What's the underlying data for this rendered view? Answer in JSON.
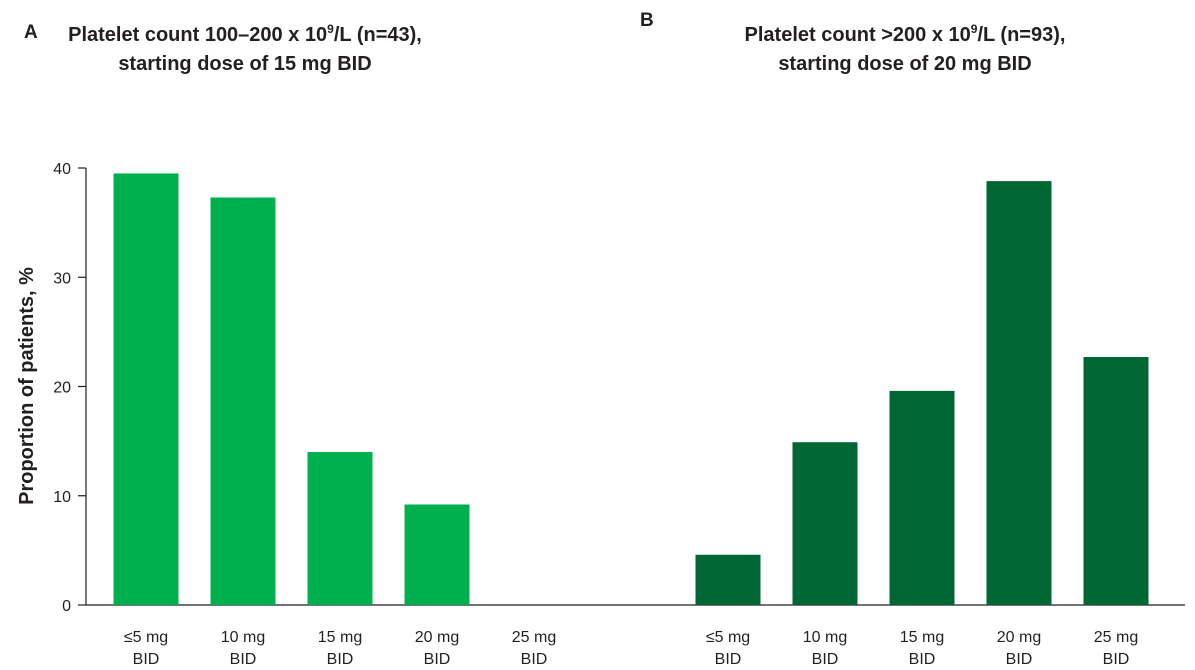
{
  "chart_data": {
    "type": "bar",
    "ylabel": "Proportion of patients, %",
    "ylim": [
      0,
      40
    ],
    "yticks": [
      "0",
      "10",
      "20",
      "30",
      "40"
    ],
    "grid": false,
    "panels": [
      {
        "letter": "A",
        "title_line1_pre": "Platelet count 100–200 x 10",
        "title_line1_sup": "9",
        "title_line1_post": "/L (n=43),",
        "title_line2": "starting dose of 15 mg BID",
        "color": "#00b04f",
        "categories": [
          {
            "line1": "≤5 mg",
            "line2": "BID"
          },
          {
            "line1": "10 mg",
            "line2": "BID"
          },
          {
            "line1": "15 mg",
            "line2": "BID"
          },
          {
            "line1": "20 mg",
            "line2": "BID"
          },
          {
            "line1": "25 mg",
            "line2": "BID"
          }
        ],
        "values": [
          39.5,
          37.3,
          14.0,
          9.2,
          0
        ]
      },
      {
        "letter": "B",
        "title_line1_pre": "Platelet count >200 x 10",
        "title_line1_sup": "9",
        "title_line1_post": "/L (n=93),",
        "title_line2": "starting dose of 20 mg BID",
        "color": "#006633",
        "categories": [
          {
            "line1": "≤5 mg",
            "line2": "BID"
          },
          {
            "line1": "10 mg",
            "line2": "BID"
          },
          {
            "line1": "15 mg",
            "line2": "BID"
          },
          {
            "line1": "20 mg",
            "line2": "BID"
          },
          {
            "line1": "25 mg",
            "line2": "BID"
          }
        ],
        "values": [
          4.6,
          14.9,
          19.6,
          38.8,
          22.7
        ]
      }
    ]
  }
}
